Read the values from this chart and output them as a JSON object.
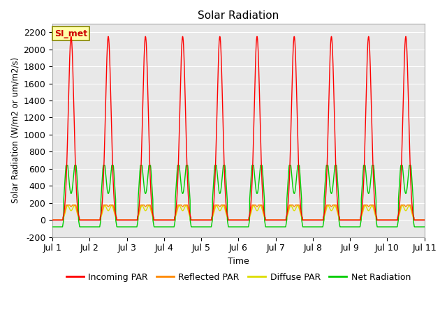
{
  "title": "Solar Radiation",
  "ylabel": "Solar Radiation (W/m2 or um/m2/s)",
  "xlabel": "Time",
  "ylim": [
    -200,
    2300
  ],
  "yticks": [
    -200,
    0,
    200,
    400,
    600,
    800,
    1000,
    1200,
    1400,
    1600,
    1800,
    2000,
    2200
  ],
  "n_days": 10,
  "xtick_labels": [
    "Jul 1",
    "Jul 2",
    "Jul 3",
    "Jul 4",
    "Jul 5",
    "Jul 6",
    "Jul 7",
    "Jul 8",
    "Jul 9",
    "Jul 10",
    "Jul 11"
  ],
  "incoming_peak": 2150,
  "reflected_peak": 175,
  "diffuse_peak": 175,
  "net_peak": 640,
  "net_min": -80,
  "colors": {
    "incoming": "#ff0000",
    "reflected": "#ff8800",
    "diffuse": "#dddd00",
    "net": "#00cc00"
  },
  "bg_color": "#e8e8e8",
  "annotation_text": "SI_met",
  "annotation_color": "#cc0000",
  "annotation_bg": "#ffffaa",
  "annotation_border": "#888800",
  "legend_entries": [
    "Incoming PAR",
    "Reflected PAR",
    "Diffuse PAR",
    "Net Radiation"
  ]
}
